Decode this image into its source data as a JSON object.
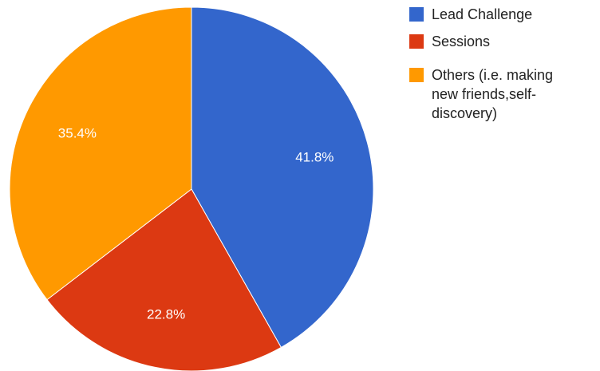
{
  "chart_data": {
    "type": "pie",
    "title": "",
    "legend_position": "right",
    "slices": [
      {
        "name": "Lead Challenge",
        "value": 41.8,
        "label": "41.8%",
        "color": "#3366cc",
        "legend_lines": [
          "Lead Challenge"
        ]
      },
      {
        "name": "Sessions",
        "value": 22.8,
        "label": "22.8%",
        "color": "#dc3912",
        "legend_lines": [
          "Sessions"
        ]
      },
      {
        "name": "Others (i.e. making new friends,self-discovery)",
        "value": 35.4,
        "label": "35.4%",
        "color": "#ff9900",
        "legend_lines": [
          "Others (i.e. making",
          "new friends,self-",
          "discovery)"
        ]
      }
    ]
  }
}
